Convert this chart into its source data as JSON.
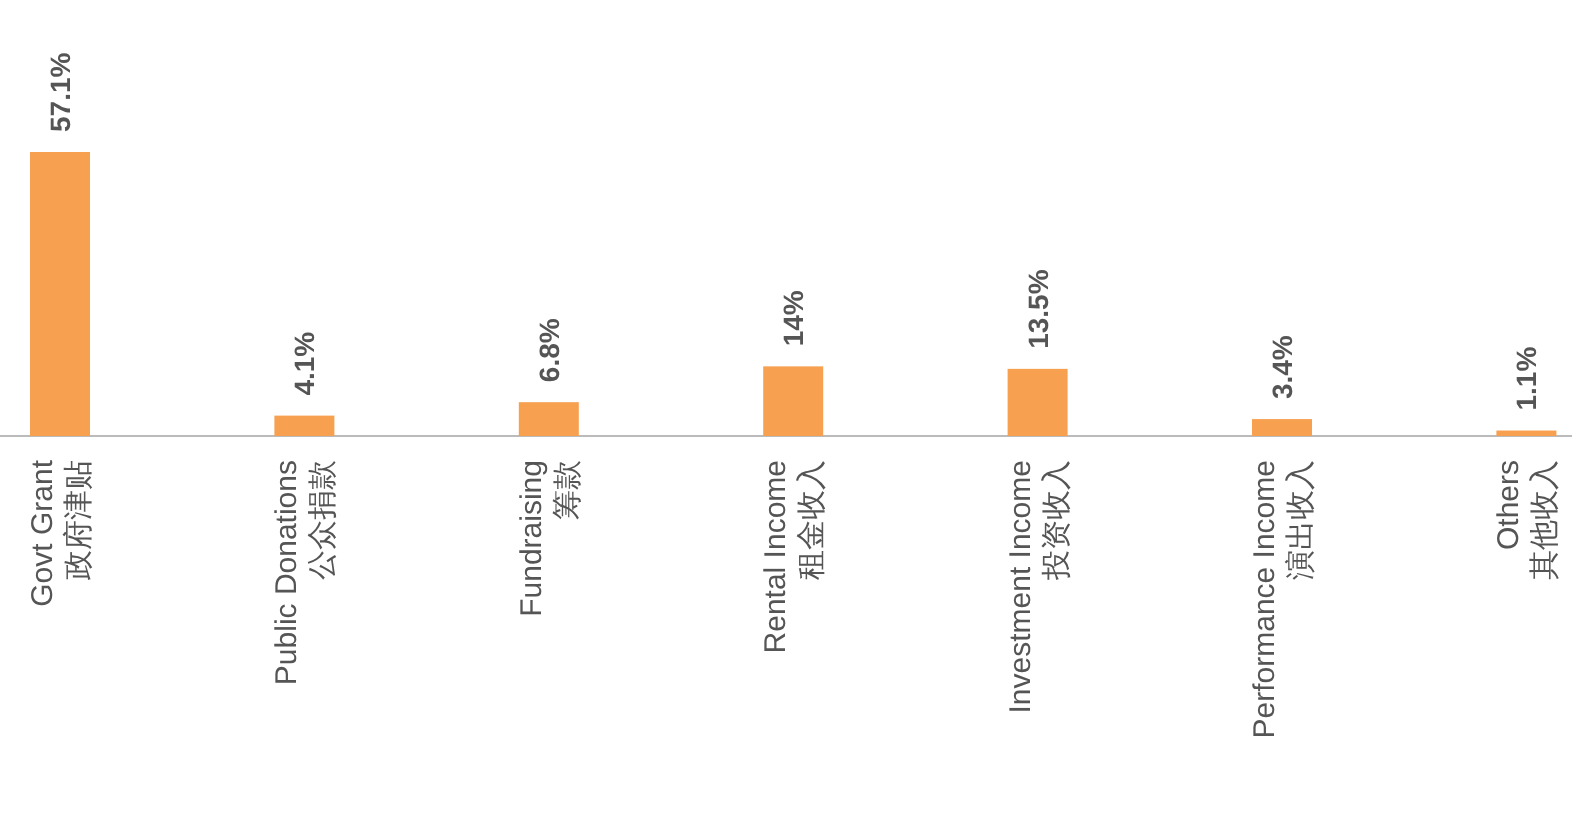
{
  "chart_data": {
    "type": "bar",
    "categories": [
      "Govt Grant\n政府津贴",
      "Public Donations\n公众捐款",
      "Fundraising\n筹款",
      "Rental Income\n租金收入",
      "Investment Income\n投资收入",
      "Performance Income\n演出收入",
      "Others\n其他收入"
    ],
    "values": [
      57.1,
      4.1,
      6.8,
      14,
      13.5,
      3.4,
      1.1
    ],
    "color": "#f7a04f",
    "value_labels": [
      "57.1%",
      "4.1%",
      "6.8%",
      "14%",
      "13.5%",
      "3.4%",
      "1.1%"
    ]
  }
}
